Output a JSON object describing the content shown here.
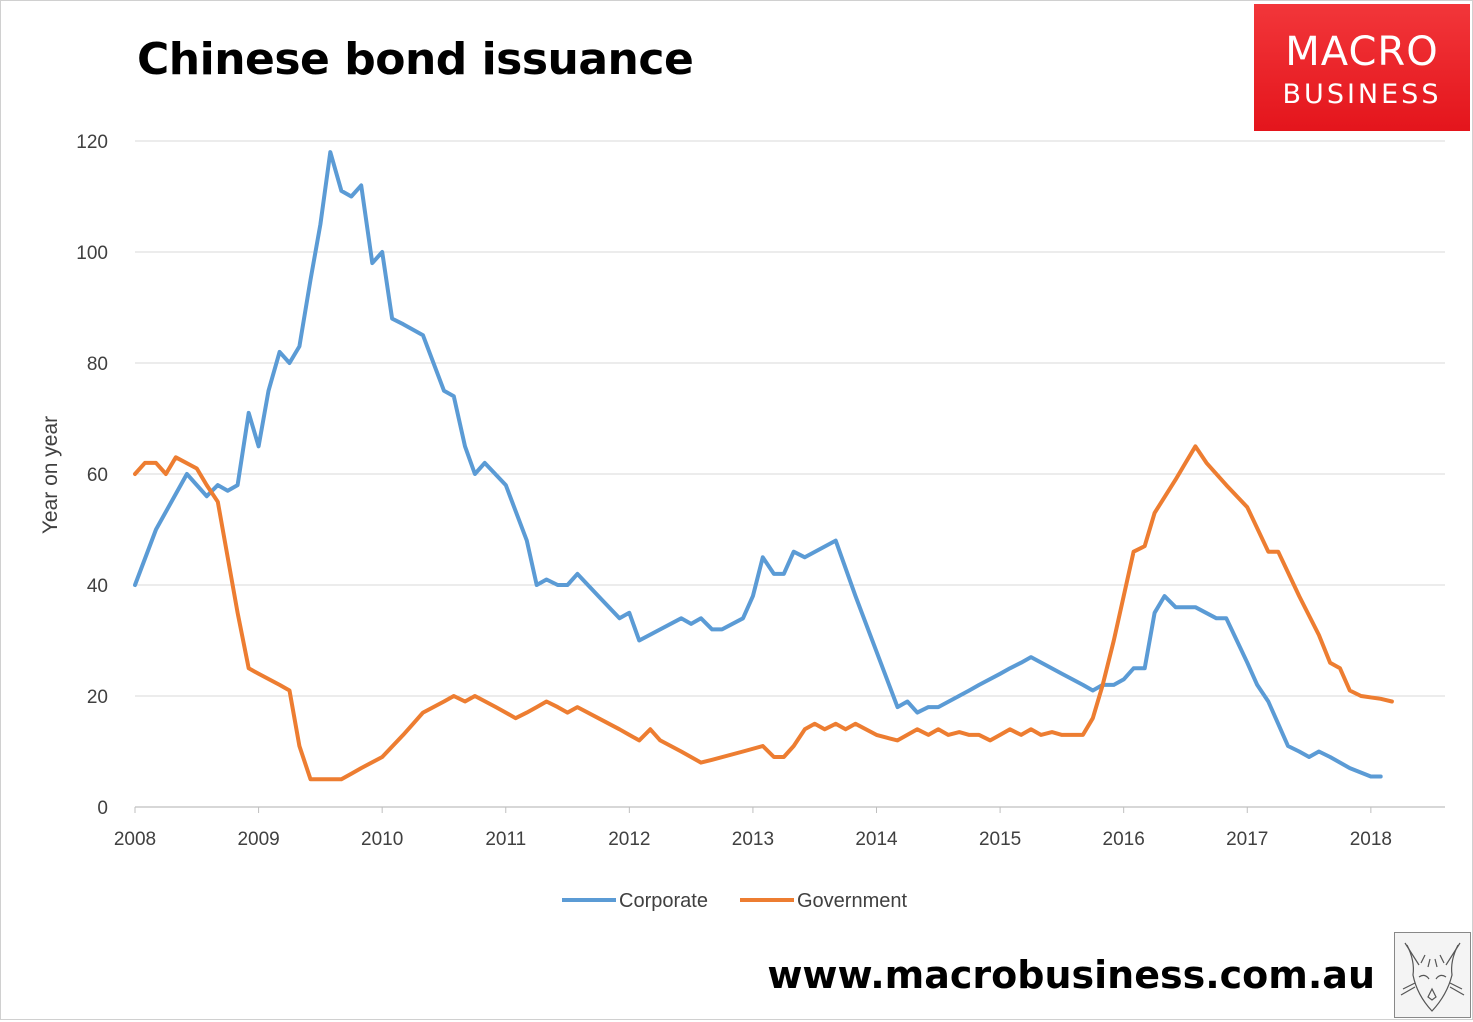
{
  "header": {
    "title": "Chinese bond issuance"
  },
  "logo": {
    "line1": "MACRO",
    "line2": "BUSINESS",
    "background": "#e8191f"
  },
  "footer": {
    "url": "www.macrobusiness.com.au",
    "fox_icon": "fox-sketch-icon"
  },
  "chart_data": {
    "type": "line",
    "title": "Chinese bond issuance",
    "ylabel": "Year on year",
    "xlabel": "",
    "xlim": [
      2008,
      2018.6
    ],
    "ylim": [
      0,
      120
    ],
    "yticks": [
      0,
      20,
      40,
      60,
      80,
      100,
      120
    ],
    "xticks": [
      2008,
      2009,
      2010,
      2011,
      2012,
      2013,
      2014,
      2015,
      2016,
      2017,
      2018
    ],
    "grid": true,
    "legend": "bottom-center",
    "series": [
      {
        "name": "Corporate",
        "color": "#5b9bd5",
        "points": [
          [
            2008.0,
            40
          ],
          [
            2008.17,
            50
          ],
          [
            2008.42,
            60
          ],
          [
            2008.58,
            56
          ],
          [
            2008.67,
            58
          ],
          [
            2008.75,
            57
          ],
          [
            2008.83,
            58
          ],
          [
            2008.92,
            71
          ],
          [
            2009.0,
            65
          ],
          [
            2009.08,
            75
          ],
          [
            2009.17,
            82
          ],
          [
            2009.25,
            80
          ],
          [
            2009.33,
            83
          ],
          [
            2009.42,
            95
          ],
          [
            2009.5,
            105
          ],
          [
            2009.58,
            118
          ],
          [
            2009.67,
            111
          ],
          [
            2009.75,
            110
          ],
          [
            2009.83,
            112
          ],
          [
            2009.92,
            98
          ],
          [
            2010.0,
            100
          ],
          [
            2010.08,
            88
          ],
          [
            2010.17,
            87
          ],
          [
            2010.33,
            85
          ],
          [
            2010.5,
            75
          ],
          [
            2010.58,
            74
          ],
          [
            2010.67,
            65
          ],
          [
            2010.75,
            60
          ],
          [
            2010.83,
            62
          ],
          [
            2011.0,
            58
          ],
          [
            2011.17,
            48
          ],
          [
            2011.25,
            40
          ],
          [
            2011.33,
            41
          ],
          [
            2011.42,
            40
          ],
          [
            2011.5,
            40
          ],
          [
            2011.58,
            42
          ],
          [
            2011.75,
            38
          ],
          [
            2011.92,
            34
          ],
          [
            2012.0,
            35
          ],
          [
            2012.08,
            30
          ],
          [
            2012.25,
            32
          ],
          [
            2012.42,
            34
          ],
          [
            2012.5,
            33
          ],
          [
            2012.58,
            34
          ],
          [
            2012.67,
            32
          ],
          [
            2012.75,
            32
          ],
          [
            2012.92,
            34
          ],
          [
            2013.0,
            38
          ],
          [
            2013.08,
            45
          ],
          [
            2013.17,
            42
          ],
          [
            2013.25,
            42
          ],
          [
            2013.33,
            46
          ],
          [
            2013.42,
            45
          ],
          [
            2013.67,
            48
          ],
          [
            2013.83,
            38
          ],
          [
            2014.0,
            28
          ],
          [
            2014.17,
            18
          ],
          [
            2014.25,
            19
          ],
          [
            2014.33,
            17
          ],
          [
            2014.42,
            18
          ],
          [
            2014.5,
            18
          ],
          [
            2014.75,
            21
          ],
          [
            2014.83,
            22
          ],
          [
            2015.0,
            24
          ],
          [
            2015.08,
            25
          ],
          [
            2015.17,
            26
          ],
          [
            2015.25,
            27
          ],
          [
            2015.5,
            24
          ],
          [
            2015.67,
            22
          ],
          [
            2015.75,
            21
          ],
          [
            2015.83,
            22
          ],
          [
            2015.92,
            22
          ],
          [
            2016.0,
            23
          ],
          [
            2016.08,
            25
          ],
          [
            2016.17,
            25
          ],
          [
            2016.25,
            35
          ],
          [
            2016.33,
            38
          ],
          [
            2016.42,
            36
          ],
          [
            2016.58,
            36
          ],
          [
            2016.75,
            34
          ],
          [
            2016.83,
            34
          ],
          [
            2017.0,
            26
          ],
          [
            2017.08,
            22
          ],
          [
            2017.17,
            19
          ],
          [
            2017.25,
            15
          ],
          [
            2017.33,
            11
          ],
          [
            2017.42,
            10
          ],
          [
            2017.5,
            9
          ],
          [
            2017.58,
            10
          ],
          [
            2017.67,
            9
          ],
          [
            2017.83,
            7
          ],
          [
            2018.0,
            5.5
          ],
          [
            2018.08,
            5.5
          ]
        ]
      },
      {
        "name": "Government",
        "color": "#ed7d31",
        "points": [
          [
            2008.0,
            60
          ],
          [
            2008.08,
            62
          ],
          [
            2008.17,
            62
          ],
          [
            2008.25,
            60
          ],
          [
            2008.33,
            63
          ],
          [
            2008.5,
            61
          ],
          [
            2008.58,
            58
          ],
          [
            2008.67,
            55
          ],
          [
            2008.75,
            45
          ],
          [
            2008.83,
            35
          ],
          [
            2008.92,
            25
          ],
          [
            2009.0,
            24
          ],
          [
            2009.17,
            22
          ],
          [
            2009.25,
            21
          ],
          [
            2009.33,
            11
          ],
          [
            2009.42,
            5
          ],
          [
            2009.5,
            5
          ],
          [
            2009.58,
            5
          ],
          [
            2009.67,
            5
          ],
          [
            2009.75,
            6
          ],
          [
            2009.83,
            7
          ],
          [
            2010.0,
            9
          ],
          [
            2010.17,
            13
          ],
          [
            2010.25,
            15
          ],
          [
            2010.33,
            17
          ],
          [
            2010.5,
            19
          ],
          [
            2010.58,
            20
          ],
          [
            2010.67,
            19
          ],
          [
            2010.75,
            20
          ],
          [
            2010.92,
            18
          ],
          [
            2011.0,
            17
          ],
          [
            2011.08,
            16
          ],
          [
            2011.17,
            17
          ],
          [
            2011.25,
            18
          ],
          [
            2011.33,
            19
          ],
          [
            2011.42,
            18
          ],
          [
            2011.5,
            17
          ],
          [
            2011.58,
            18
          ],
          [
            2011.75,
            16
          ],
          [
            2011.92,
            14
          ],
          [
            2012.0,
            13
          ],
          [
            2012.08,
            12
          ],
          [
            2012.17,
            14
          ],
          [
            2012.25,
            12
          ],
          [
            2012.42,
            10
          ],
          [
            2012.58,
            8
          ],
          [
            2012.67,
            8.5
          ],
          [
            2012.92,
            10
          ],
          [
            2013.08,
            11
          ],
          [
            2013.17,
            9
          ],
          [
            2013.25,
            9
          ],
          [
            2013.33,
            11
          ],
          [
            2013.42,
            14
          ],
          [
            2013.5,
            15
          ],
          [
            2013.58,
            14
          ],
          [
            2013.67,
            15
          ],
          [
            2013.75,
            14
          ],
          [
            2013.83,
            15
          ],
          [
            2014.0,
            13
          ],
          [
            2014.08,
            12.5
          ],
          [
            2014.17,
            12
          ],
          [
            2014.33,
            14
          ],
          [
            2014.42,
            13
          ],
          [
            2014.5,
            14
          ],
          [
            2014.58,
            13
          ],
          [
            2014.67,
            13.5
          ],
          [
            2014.75,
            13
          ],
          [
            2014.83,
            13
          ],
          [
            2014.92,
            12
          ],
          [
            2015.0,
            13
          ],
          [
            2015.08,
            14
          ],
          [
            2015.17,
            13
          ],
          [
            2015.25,
            14
          ],
          [
            2015.33,
            13
          ],
          [
            2015.42,
            13.5
          ],
          [
            2015.5,
            13
          ],
          [
            2015.67,
            13
          ],
          [
            2015.75,
            16
          ],
          [
            2015.83,
            22
          ],
          [
            2015.92,
            30
          ],
          [
            2016.0,
            38
          ],
          [
            2016.08,
            46
          ],
          [
            2016.17,
            47
          ],
          [
            2016.25,
            53
          ],
          [
            2016.42,
            59
          ],
          [
            2016.5,
            62
          ],
          [
            2016.58,
            65
          ],
          [
            2016.67,
            62
          ],
          [
            2016.83,
            58
          ],
          [
            2017.0,
            54
          ],
          [
            2017.17,
            46
          ],
          [
            2017.25,
            46
          ],
          [
            2017.42,
            38
          ],
          [
            2017.58,
            31
          ],
          [
            2017.67,
            26
          ],
          [
            2017.75,
            25
          ],
          [
            2017.83,
            21
          ],
          [
            2017.92,
            20
          ],
          [
            2018.08,
            19.5
          ],
          [
            2018.17,
            19
          ]
        ]
      }
    ]
  }
}
